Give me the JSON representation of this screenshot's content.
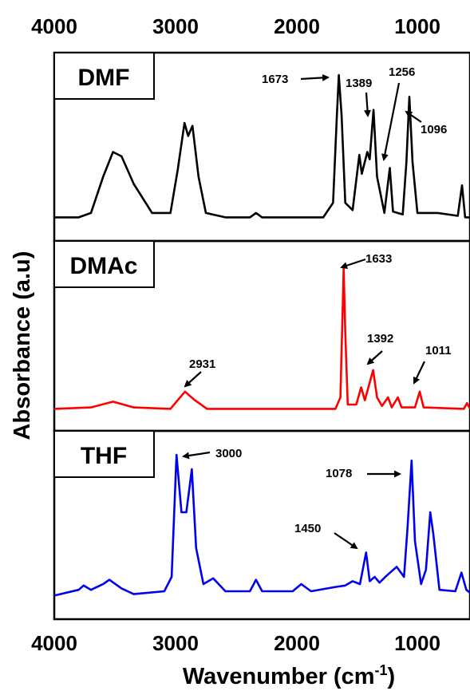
{
  "chart_data": {
    "type": "line",
    "xlabel": "Wavenumber (cm",
    "xlabel_sup": "-1",
    "xlabel_end": ")",
    "ylabel": "Absorbance (a.u)",
    "xlim": [
      4000,
      600
    ],
    "x_ticks": [
      "4000",
      "3000",
      "2000",
      "1000"
    ],
    "panels": [
      {
        "name": "DMF",
        "color": "#000000",
        "series": [
          {
            "x": 4000,
            "y": 0.02
          },
          {
            "x": 3800,
            "y": 0.02
          },
          {
            "x": 3700,
            "y": 0.05
          },
          {
            "x": 3600,
            "y": 0.3
          },
          {
            "x": 3520,
            "y": 0.47
          },
          {
            "x": 3450,
            "y": 0.44
          },
          {
            "x": 3350,
            "y": 0.25
          },
          {
            "x": 3200,
            "y": 0.05
          },
          {
            "x": 3050,
            "y": 0.05
          },
          {
            "x": 2990,
            "y": 0.35
          },
          {
            "x": 2935,
            "y": 0.67
          },
          {
            "x": 2905,
            "y": 0.58
          },
          {
            "x": 2870,
            "y": 0.65
          },
          {
            "x": 2820,
            "y": 0.3
          },
          {
            "x": 2760,
            "y": 0.05
          },
          {
            "x": 2600,
            "y": 0.02
          },
          {
            "x": 2400,
            "y": 0.02
          },
          {
            "x": 2350,
            "y": 0.05
          },
          {
            "x": 2300,
            "y": 0.02
          },
          {
            "x": 1800,
            "y": 0.02
          },
          {
            "x": 1720,
            "y": 0.12
          },
          {
            "x": 1690,
            "y": 0.7
          },
          {
            "x": 1673,
            "y": 1.0
          },
          {
            "x": 1650,
            "y": 0.72
          },
          {
            "x": 1620,
            "y": 0.12
          },
          {
            "x": 1560,
            "y": 0.07
          },
          {
            "x": 1505,
            "y": 0.45
          },
          {
            "x": 1485,
            "y": 0.32
          },
          {
            "x": 1440,
            "y": 0.47
          },
          {
            "x": 1420,
            "y": 0.42
          },
          {
            "x": 1389,
            "y": 0.76
          },
          {
            "x": 1360,
            "y": 0.3
          },
          {
            "x": 1300,
            "y": 0.05
          },
          {
            "x": 1256,
            "y": 0.36
          },
          {
            "x": 1230,
            "y": 0.06
          },
          {
            "x": 1150,
            "y": 0.04
          },
          {
            "x": 1120,
            "y": 0.4
          },
          {
            "x": 1096,
            "y": 0.85
          },
          {
            "x": 1070,
            "y": 0.4
          },
          {
            "x": 1030,
            "y": 0.05
          },
          {
            "x": 940,
            "y": 0.05
          },
          {
            "x": 865,
            "y": 0.05
          },
          {
            "x": 700,
            "y": 0.03
          },
          {
            "x": 665,
            "y": 0.24
          },
          {
            "x": 640,
            "y": 0.02
          },
          {
            "x": 600,
            "y": 0.02
          }
        ],
        "annotations": [
          "1673",
          "1389",
          "1256",
          "1096"
        ]
      },
      {
        "name": "DMAc",
        "color": "#ff0000",
        "series": [
          {
            "x": 4000,
            "y": 0.02
          },
          {
            "x": 3700,
            "y": 0.03
          },
          {
            "x": 3520,
            "y": 0.07
          },
          {
            "x": 3350,
            "y": 0.03
          },
          {
            "x": 3050,
            "y": 0.02
          },
          {
            "x": 2931,
            "y": 0.14
          },
          {
            "x": 2850,
            "y": 0.08
          },
          {
            "x": 2750,
            "y": 0.02
          },
          {
            "x": 2000,
            "y": 0.02
          },
          {
            "x": 1700,
            "y": 0.02
          },
          {
            "x": 1660,
            "y": 0.1
          },
          {
            "x": 1645,
            "y": 0.6
          },
          {
            "x": 1633,
            "y": 1.0
          },
          {
            "x": 1620,
            "y": 0.55
          },
          {
            "x": 1600,
            "y": 0.05
          },
          {
            "x": 1530,
            "y": 0.05
          },
          {
            "x": 1490,
            "y": 0.17
          },
          {
            "x": 1460,
            "y": 0.08
          },
          {
            "x": 1392,
            "y": 0.29
          },
          {
            "x": 1360,
            "y": 0.1
          },
          {
            "x": 1320,
            "y": 0.04
          },
          {
            "x": 1270,
            "y": 0.1
          },
          {
            "x": 1240,
            "y": 0.03
          },
          {
            "x": 1190,
            "y": 0.1
          },
          {
            "x": 1160,
            "y": 0.03
          },
          {
            "x": 1050,
            "y": 0.03
          },
          {
            "x": 1011,
            "y": 0.14
          },
          {
            "x": 980,
            "y": 0.03
          },
          {
            "x": 650,
            "y": 0.02
          },
          {
            "x": 625,
            "y": 0.06
          },
          {
            "x": 600,
            "y": 0.02
          }
        ],
        "annotations": [
          "2931",
          "1633",
          "1392",
          "1011"
        ]
      },
      {
        "name": "THF",
        "color": "#0000ee",
        "series": [
          {
            "x": 4000,
            "y": 0.02
          },
          {
            "x": 3800,
            "y": 0.06
          },
          {
            "x": 3760,
            "y": 0.09
          },
          {
            "x": 3700,
            "y": 0.06
          },
          {
            "x": 3600,
            "y": 0.1
          },
          {
            "x": 3550,
            "y": 0.13
          },
          {
            "x": 3450,
            "y": 0.07
          },
          {
            "x": 3350,
            "y": 0.03
          },
          {
            "x": 3100,
            "y": 0.05
          },
          {
            "x": 3040,
            "y": 0.15
          },
          {
            "x": 3000,
            "y": 1.0
          },
          {
            "x": 2960,
            "y": 0.6
          },
          {
            "x": 2920,
            "y": 0.6
          },
          {
            "x": 2875,
            "y": 0.9
          },
          {
            "x": 2840,
            "y": 0.35
          },
          {
            "x": 2780,
            "y": 0.1
          },
          {
            "x": 2700,
            "y": 0.14
          },
          {
            "x": 2600,
            "y": 0.05
          },
          {
            "x": 2400,
            "y": 0.05
          },
          {
            "x": 2350,
            "y": 0.13
          },
          {
            "x": 2300,
            "y": 0.05
          },
          {
            "x": 2050,
            "y": 0.05
          },
          {
            "x": 1980,
            "y": 0.1
          },
          {
            "x": 1900,
            "y": 0.05
          },
          {
            "x": 1700,
            "y": 0.08
          },
          {
            "x": 1620,
            "y": 0.09
          },
          {
            "x": 1560,
            "y": 0.12
          },
          {
            "x": 1500,
            "y": 0.1
          },
          {
            "x": 1450,
            "y": 0.32
          },
          {
            "x": 1420,
            "y": 0.12
          },
          {
            "x": 1380,
            "y": 0.15
          },
          {
            "x": 1340,
            "y": 0.11
          },
          {
            "x": 1280,
            "y": 0.16
          },
          {
            "x": 1200,
            "y": 0.22
          },
          {
            "x": 1140,
            "y": 0.15
          },
          {
            "x": 1110,
            "y": 0.5
          },
          {
            "x": 1078,
            "y": 0.96
          },
          {
            "x": 1050,
            "y": 0.4
          },
          {
            "x": 1000,
            "y": 0.1
          },
          {
            "x": 960,
            "y": 0.2
          },
          {
            "x": 925,
            "y": 0.6
          },
          {
            "x": 900,
            "y": 0.45
          },
          {
            "x": 850,
            "y": 0.06
          },
          {
            "x": 720,
            "y": 0.05
          },
          {
            "x": 670,
            "y": 0.18
          },
          {
            "x": 630,
            "y": 0.06
          },
          {
            "x": 600,
            "y": 0.04
          }
        ],
        "annotations": [
          "3000",
          "1450",
          "1078"
        ]
      }
    ]
  }
}
